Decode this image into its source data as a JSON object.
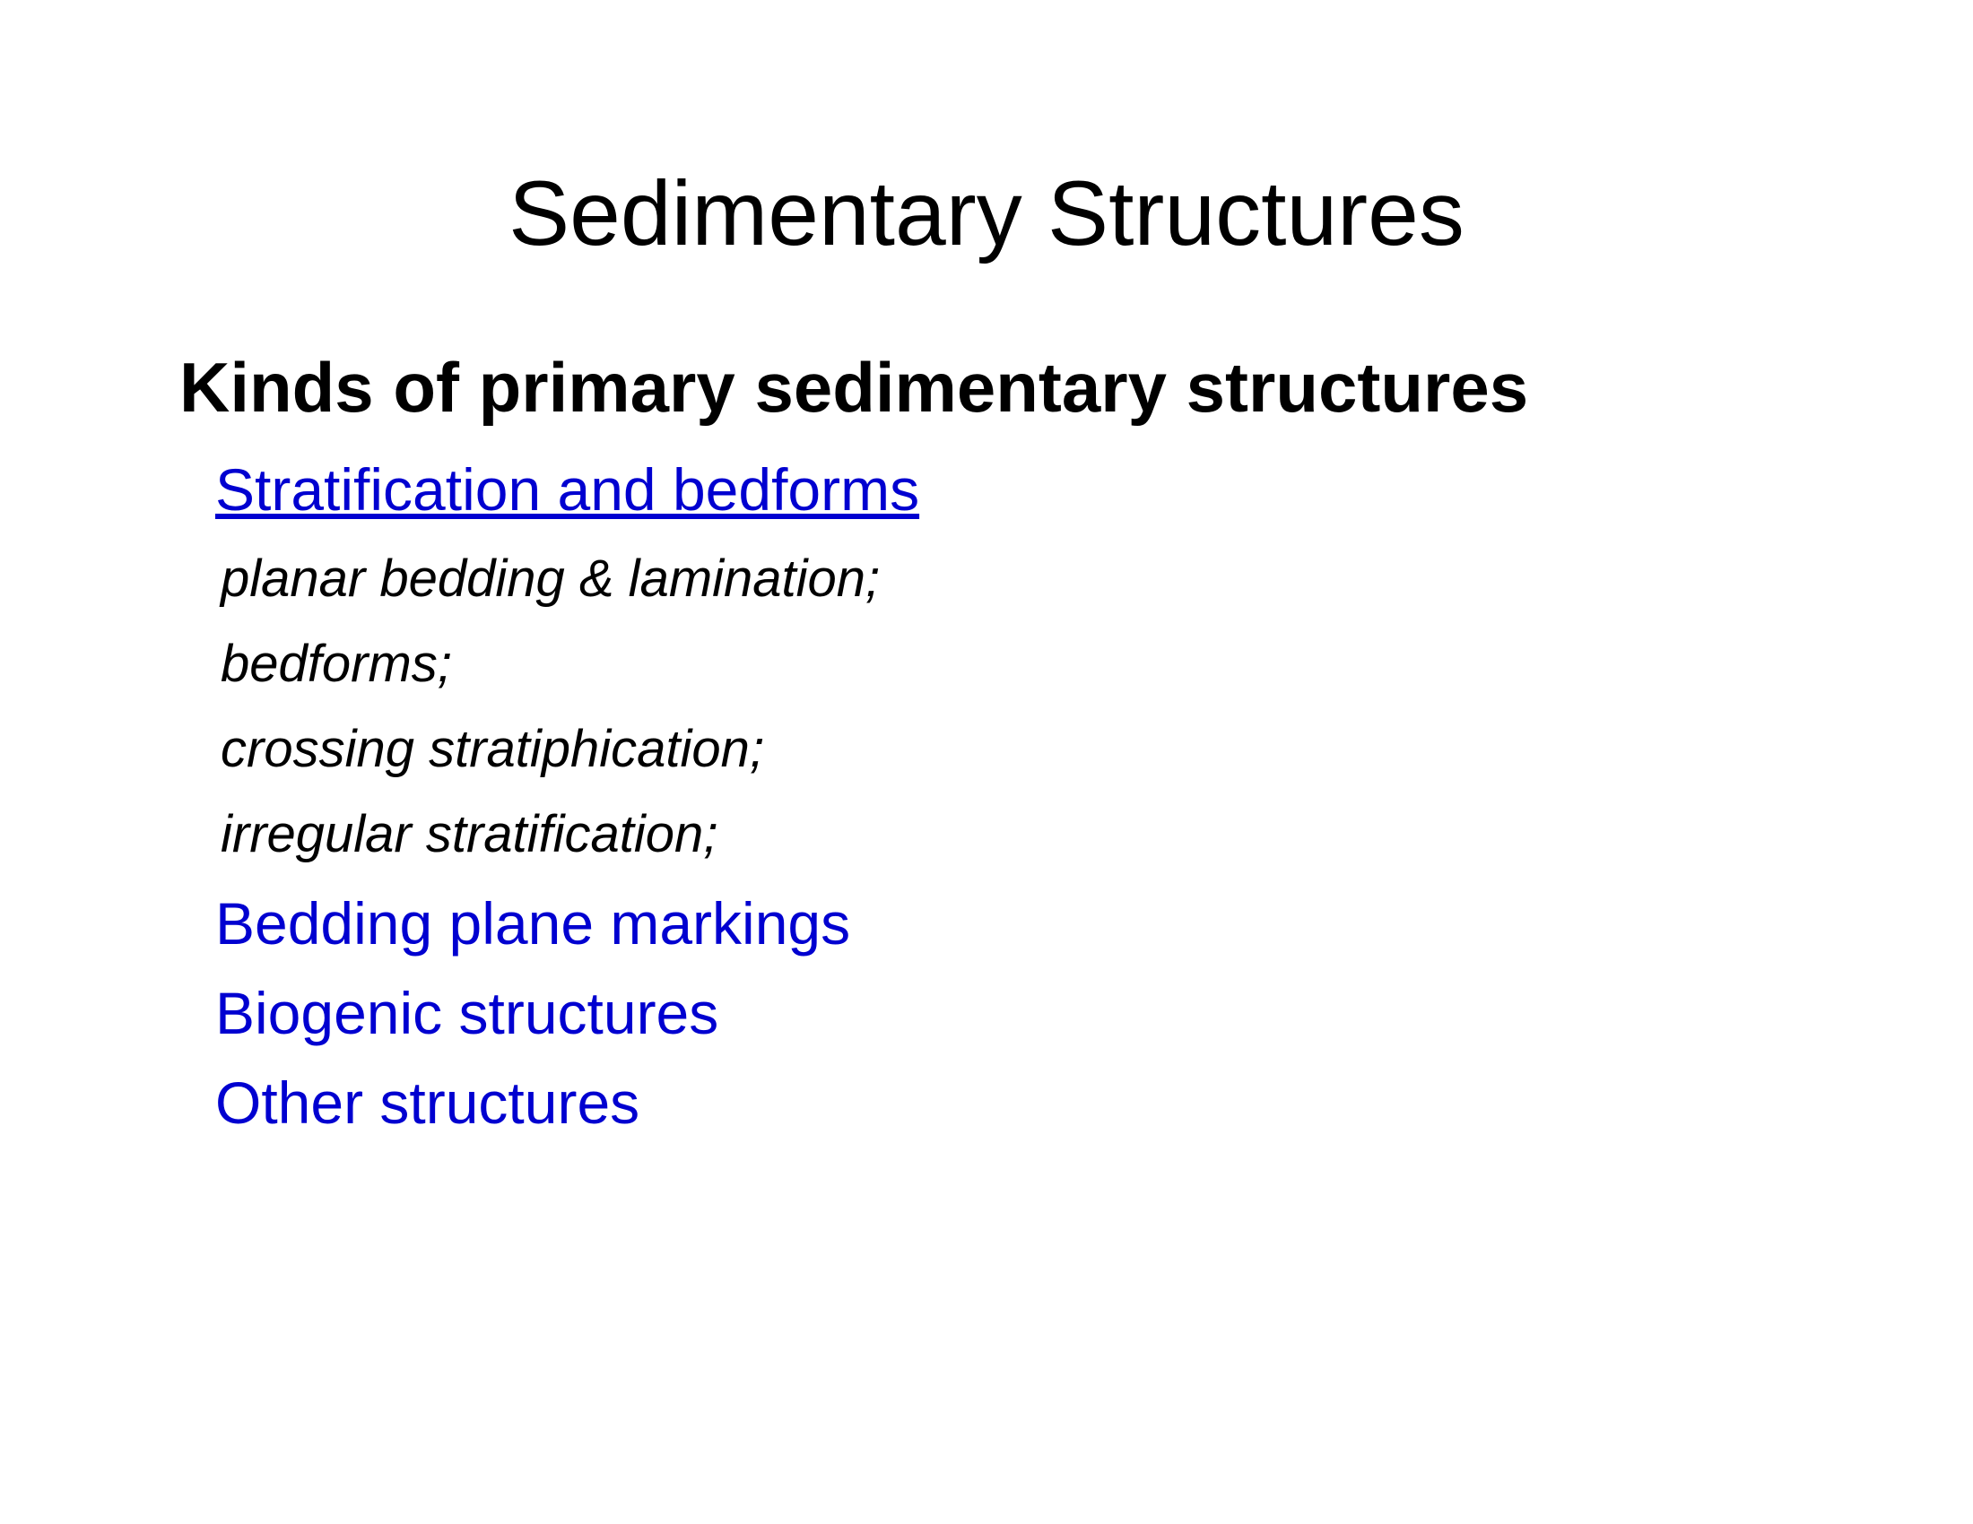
{
  "slide": {
    "title": "Sedimentary Structures",
    "heading": "Kinds of primary sedimentary structures",
    "category1": "Stratification and bedforms",
    "sub_items": [
      "planar bedding & lamination;",
      "bedforms;",
      "crossing stratiphication;",
      "irregular stratification;"
    ],
    "category2": "Bedding plane markings",
    "category3": "Biogenic structures",
    "category4": "Other structures"
  },
  "styles": {
    "background_color": "#ffffff",
    "title_color": "#000000",
    "title_fontsize": 102,
    "title_fontweight": 400,
    "heading_color": "#000000",
    "heading_fontsize": 78,
    "heading_fontweight": 700,
    "category_color": "#0000d0",
    "category_fontsize": 66,
    "category_fontweight": 400,
    "subitem_color": "#000000",
    "subitem_fontsize": 58,
    "subitem_fontstyle": "italic",
    "font_family": "Arial"
  }
}
